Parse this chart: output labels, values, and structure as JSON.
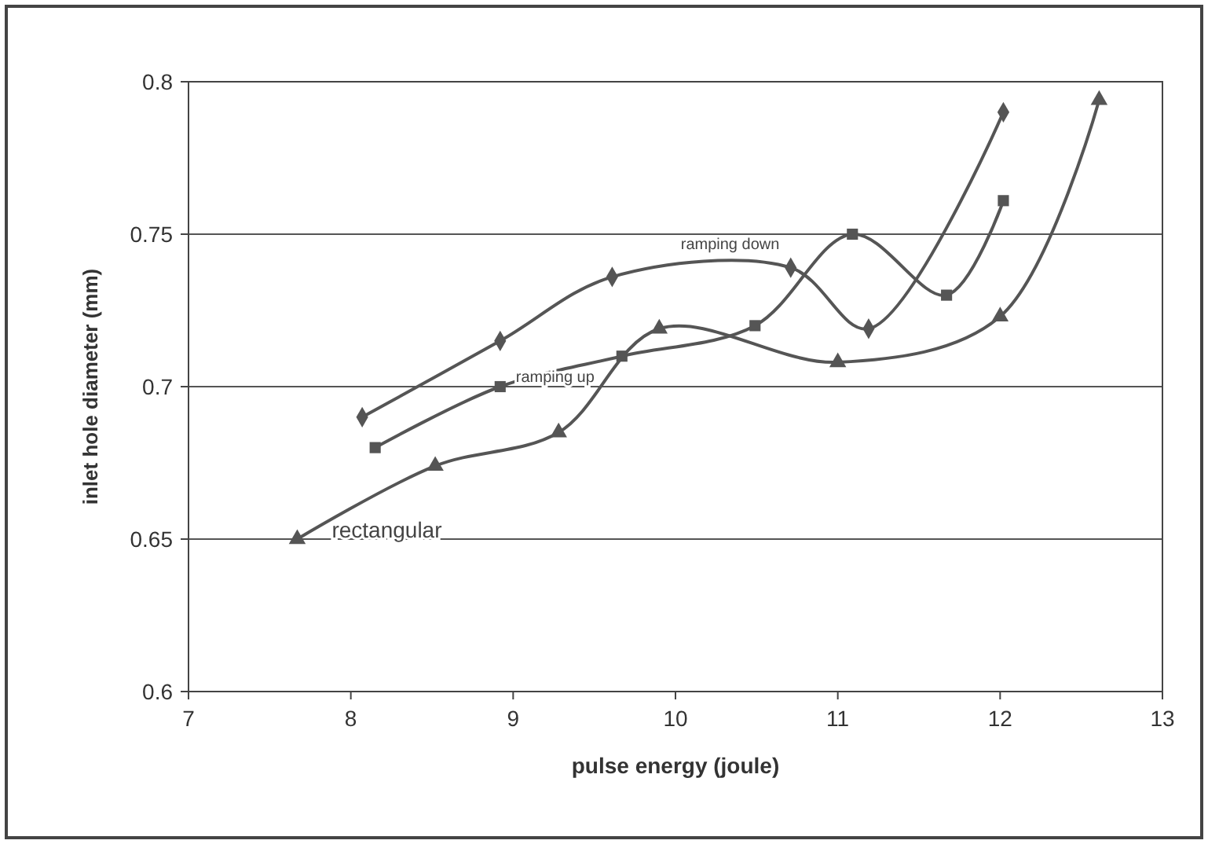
{
  "chart_data": {
    "type": "line",
    "xlabel": "pulse energy (joule)",
    "ylabel": "inlet hole diameter (mm)",
    "xlim": [
      7,
      13
    ],
    "xticks": [
      7,
      8,
      9,
      10,
      11,
      12,
      13
    ],
    "ylim": [
      0.6,
      0.8
    ],
    "yticks": [
      0.6,
      0.65,
      0.7,
      0.75,
      0.8
    ],
    "grid": "y",
    "series": [
      {
        "color": "#555555",
        "marker": "diamond",
        "x": [
          8.07,
          8.92,
          9.61,
          10.71,
          11.19,
          12.02
        ],
        "values": [
          0.69,
          0.715,
          0.736,
          0.739,
          0.719,
          0.79
        ]
      },
      {
        "color": "#555555",
        "marker": "square",
        "x": [
          8.15,
          8.92,
          9.67,
          10.49,
          11.09,
          11.67,
          12.02
        ],
        "values": [
          0.68,
          0.7,
          0.71,
          0.72,
          0.75,
          0.73,
          0.761
        ]
      },
      {
        "color": "#555555",
        "marker": "triangle",
        "x": [
          7.67,
          8.52,
          9.28,
          9.9,
          11.0,
          12.0,
          12.61
        ],
        "values": [
          0.65,
          0.674,
          0.685,
          0.719,
          0.708,
          0.723,
          0.794
        ]
      }
    ],
    "annotations": [
      {
        "text": "ramping down",
        "x": 10.71,
        "y": 0.739
      },
      {
        "text": "ramping up",
        "x": 8.92,
        "y": 0.7
      },
      {
        "text": "rectangular",
        "x": 7.67,
        "y": 0.65
      }
    ]
  }
}
